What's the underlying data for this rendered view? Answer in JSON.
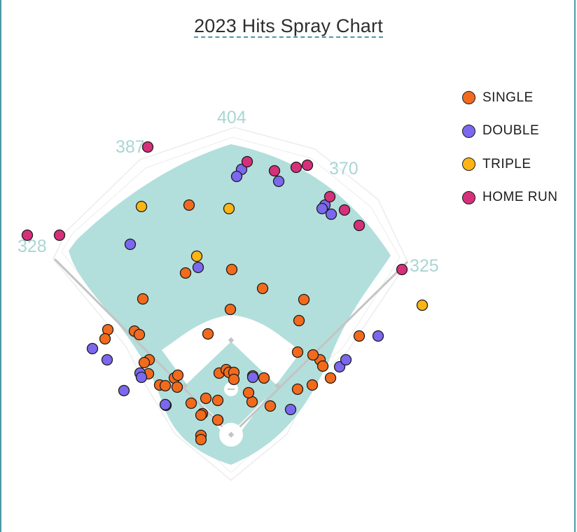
{
  "chart_data": {
    "type": "scatter",
    "title": "2023 Hits Spray Chart",
    "fence_distances": {
      "left_field_line": "328",
      "left_center": "387",
      "center": "404",
      "right_center": "370",
      "right_field_line": "325"
    },
    "legend": [
      {
        "key": "single",
        "label": "SINGLE",
        "color": "#f26b1d"
      },
      {
        "key": "double",
        "label": "DOUBLE",
        "color": "#7b68ee"
      },
      {
        "key": "triple",
        "label": "TRIPLE",
        "color": "#fdb515"
      },
      {
        "key": "home_run",
        "label": "HOME RUN",
        "color": "#d6307a"
      }
    ],
    "units": "feet, home plate at origin, +y toward center field",
    "hits": {
      "single": [
        [
          -60,
          329
        ],
        [
          -126,
          195
        ],
        [
          1,
          237
        ],
        [
          -65,
          232
        ],
        [
          -1,
          180
        ],
        [
          -33,
          145
        ],
        [
          -176,
          151
        ],
        [
          -180,
          138
        ],
        [
          -138,
          149
        ],
        [
          -131,
          144
        ],
        [
          -117,
          108
        ],
        [
          -124,
          104
        ],
        [
          -118,
          88
        ],
        [
          -81,
          82
        ],
        [
          -102,
          72
        ],
        [
          -94,
          71
        ],
        [
          -76,
          86
        ],
        [
          -77,
          69
        ],
        [
          -57,
          46
        ],
        [
          -36,
          53
        ],
        [
          -41,
          31
        ],
        [
          -43,
          29
        ],
        [
          -19,
          50
        ],
        [
          -17,
          89
        ],
        [
          -7,
          94
        ],
        [
          -3,
          90
        ],
        [
          4,
          90
        ],
        [
          4,
          80
        ],
        [
          31,
          85
        ],
        [
          47,
          82
        ],
        [
          30,
          48
        ],
        [
          56,
          42
        ],
        [
          95,
          66
        ],
        [
          116,
          72
        ],
        [
          127,
          108
        ],
        [
          117,
          115
        ],
        [
          131,
          99
        ],
        [
          95,
          119
        ],
        [
          142,
          82
        ],
        [
          183,
          142
        ],
        [
          97,
          164
        ],
        [
          104,
          194
        ],
        [
          45,
          210
        ],
        [
          25,
          61
        ],
        [
          -19,
          22
        ],
        [
          -19,
          22
        ],
        [
          -43,
          0
        ],
        [
          -43,
          -6
        ]
      ],
      "double": [
        [
          -144,
          273
        ],
        [
          -47,
          240
        ],
        [
          15,
          380
        ],
        [
          8,
          370
        ],
        [
          68,
          363
        ],
        [
          134,
          329
        ],
        [
          130,
          324
        ],
        [
          143,
          316
        ],
        [
          155,
          98
        ],
        [
          164,
          108
        ],
        [
          210,
          142
        ],
        [
          -198,
          124
        ],
        [
          -177,
          108
        ],
        [
          -130,
          89
        ],
        [
          -128,
          83
        ],
        [
          -153,
          64
        ],
        [
          -93,
          43
        ],
        [
          -94,
          44
        ],
        [
          31,
          83
        ],
        [
          85,
          37
        ]
      ],
      "triple": [
        [
          -128,
          327
        ],
        [
          -49,
          256
        ],
        [
          -3,
          324
        ],
        [
          273,
          186
        ]
      ],
      "home_run": [
        [
          -119,
          412
        ],
        [
          -291,
          286
        ],
        [
          -245,
          286
        ],
        [
          23,
          391
        ],
        [
          62,
          378
        ],
        [
          93,
          383
        ],
        [
          109,
          386
        ],
        [
          141,
          341
        ],
        [
          162,
          322
        ],
        [
          183,
          300
        ],
        [
          244,
          237
        ]
      ]
    }
  }
}
